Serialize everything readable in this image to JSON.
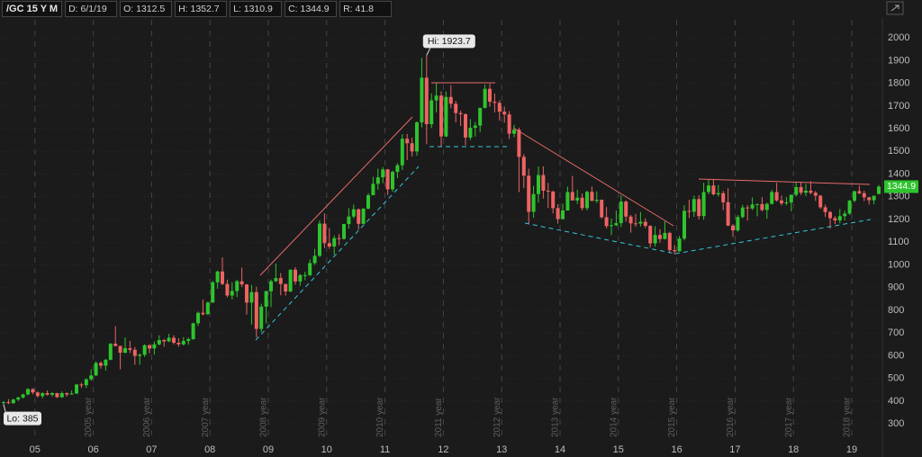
{
  "chart_data": {
    "type": "candlestick",
    "title": "/GC 15 Y M",
    "header_fields": [
      "D: 6/1/19",
      "O: 1312.5",
      "H: 1352.7",
      "L: 1310.9",
      "C: 1344.9",
      "R: 41.8"
    ],
    "hi_label": "Hi: 1923.7",
    "lo_label": "Lo: 385",
    "year_markers": [
      "2005 year",
      "2006 year",
      "2007 year",
      "2008 year",
      "2009 year",
      "2010 year",
      "2011 year",
      "2012 year",
      "2013 year",
      "2014 year",
      "2015 year",
      "2016 year",
      "2017 year",
      "2018 year"
    ],
    "up_color": "#2ec42e",
    "down_color": "#ee6363",
    "ylim": [
      225,
      2080
    ],
    "yticks": [
      300,
      400,
      500,
      600,
      700,
      800,
      900,
      1000,
      1100,
      1200,
      1300,
      1400,
      1500,
      1600,
      1700,
      1800,
      1900,
      2000
    ],
    "grid": true,
    "categories": [
      null,
      null,
      null,
      null,
      null,
      null,
      null,
      "05",
      null,
      null,
      null,
      null,
      null,
      null,
      null,
      null,
      null,
      null,
      null,
      "06",
      null,
      null,
      null,
      null,
      null,
      null,
      null,
      null,
      null,
      null,
      null,
      "07",
      null,
      null,
      null,
      null,
      null,
      null,
      null,
      null,
      null,
      null,
      null,
      "08",
      null,
      null,
      null,
      null,
      null,
      null,
      null,
      null,
      null,
      null,
      null,
      "09",
      null,
      null,
      null,
      null,
      null,
      null,
      null,
      null,
      null,
      null,
      null,
      "10",
      null,
      null,
      null,
      null,
      null,
      null,
      null,
      null,
      null,
      null,
      null,
      "11",
      null,
      null,
      null,
      null,
      null,
      null,
      null,
      null,
      null,
      null,
      null,
      "12",
      null,
      null,
      null,
      null,
      null,
      null,
      null,
      null,
      null,
      null,
      null,
      "13",
      null,
      null,
      null,
      null,
      null,
      null,
      null,
      null,
      null,
      null,
      null,
      "14",
      null,
      null,
      null,
      null,
      null,
      null,
      null,
      null,
      null,
      null,
      null,
      "15",
      null,
      null,
      null,
      null,
      null,
      null,
      null,
      null,
      null,
      null,
      null,
      "16",
      null,
      null,
      null,
      null,
      null,
      null,
      null,
      null,
      null,
      null,
      null,
      "17",
      null,
      null,
      null,
      null,
      null,
      null,
      null,
      null,
      null,
      null,
      null,
      "18",
      null,
      null,
      null,
      null,
      null,
      null,
      null,
      null,
      null,
      null,
      null,
      "19",
      null,
      null,
      null,
      null,
      null
    ],
    "candles": [
      [
        393,
        400,
        385,
        395
      ],
      [
        395,
        409,
        387,
        391
      ],
      [
        391,
        410,
        388,
        407
      ],
      [
        407,
        419,
        400,
        416
      ],
      [
        416,
        433,
        411,
        429
      ],
      [
        429,
        457,
        426,
        453
      ],
      [
        453,
        456,
        430,
        438
      ],
      [
        438,
        443,
        416,
        422
      ],
      [
        422,
        439,
        412,
        435
      ],
      [
        435,
        447,
        424,
        428
      ],
      [
        428,
        439,
        420,
        435
      ],
      [
        435,
        437,
        414,
        417
      ],
      [
        417,
        442,
        414,
        435
      ],
      [
        435,
        438,
        419,
        429
      ],
      [
        429,
        447,
        428,
        433
      ],
      [
        433,
        475,
        432,
        473
      ],
      [
        473,
        481,
        458,
        470
      ],
      [
        470,
        500,
        458,
        496
      ],
      [
        496,
        540,
        490,
        513
      ],
      [
        513,
        575,
        510,
        568
      ],
      [
        568,
        575,
        543,
        556
      ],
      [
        556,
        586,
        535,
        582
      ],
      [
        582,
        655,
        580,
        653
      ],
      [
        653,
        730,
        640,
        643
      ],
      [
        643,
        644,
        540,
        613
      ],
      [
        613,
        680,
        610,
        633
      ],
      [
        633,
        665,
        612,
        626
      ],
      [
        626,
        638,
        560,
        599
      ],
      [
        599,
        610,
        560,
        604
      ],
      [
        604,
        650,
        595,
        646
      ],
      [
        646,
        650,
        610,
        632
      ],
      [
        632,
        663,
        605,
        650
      ],
      [
        650,
        690,
        645,
        669
      ],
      [
        669,
        674,
        640,
        663
      ],
      [
        663,
        696,
        660,
        679
      ],
      [
        679,
        690,
        650,
        657
      ],
      [
        657,
        677,
        640,
        650
      ],
      [
        650,
        682,
        645,
        665
      ],
      [
        665,
        680,
        648,
        673
      ],
      [
        673,
        745,
        670,
        743
      ],
      [
        743,
        795,
        731,
        789
      ],
      [
        789,
        848,
        777,
        783
      ],
      [
        783,
        838,
        779,
        834
      ],
      [
        834,
        930,
        833,
        923
      ],
      [
        923,
        975,
        895,
        971
      ],
      [
        971,
        1033,
        911,
        916
      ],
      [
        916,
        935,
        857,
        865
      ],
      [
        865,
        923,
        847,
        885
      ],
      [
        885,
        935,
        858,
        928
      ],
      [
        928,
        988,
        903,
        914
      ],
      [
        914,
        915,
        782,
        834
      ],
      [
        834,
        912,
        737,
        880
      ],
      [
        880,
        904,
        681,
        718
      ],
      [
        718,
        829,
        704,
        816
      ],
      [
        816,
        887,
        743,
        884
      ],
      [
        884,
        935,
        814,
        928
      ],
      [
        928,
        1006,
        925,
        942
      ],
      [
        942,
        964,
        866,
        916
      ],
      [
        916,
        917,
        865,
        883
      ],
      [
        883,
        980,
        880,
        979
      ],
      [
        979,
        990,
        913,
        927
      ],
      [
        927,
        960,
        908,
        955
      ],
      [
        955,
        970,
        933,
        955
      ],
      [
        955,
        1024,
        950,
        1008
      ],
      [
        1008,
        1070,
        1000,
        1040
      ],
      [
        1040,
        1196,
        1035,
        1182
      ],
      [
        1182,
        1227,
        1075,
        1096
      ],
      [
        1096,
        1163,
        1071,
        1081
      ],
      [
        1081,
        1130,
        1044,
        1118
      ],
      [
        1118,
        1136,
        1087,
        1115
      ],
      [
        1115,
        1181,
        1111,
        1180
      ],
      [
        1180,
        1250,
        1160,
        1213
      ],
      [
        1213,
        1266,
        1205,
        1245
      ],
      [
        1245,
        1248,
        1155,
        1181
      ],
      [
        1181,
        1250,
        1180,
        1248
      ],
      [
        1248,
        1316,
        1245,
        1307
      ],
      [
        1307,
        1388,
        1307,
        1357
      ],
      [
        1357,
        1424,
        1331,
        1386
      ],
      [
        1386,
        1431,
        1360,
        1421
      ],
      [
        1421,
        1423,
        1308,
        1333
      ],
      [
        1333,
        1416,
        1323,
        1410
      ],
      [
        1410,
        1448,
        1382,
        1439
      ],
      [
        1439,
        1576,
        1418,
        1556
      ],
      [
        1556,
        1577,
        1462,
        1536
      ],
      [
        1536,
        1561,
        1478,
        1500
      ],
      [
        1500,
        1632,
        1481,
        1628
      ],
      [
        1628,
        1912,
        1606,
        1825
      ],
      [
        1825,
        1923.7,
        1532,
        1620
      ],
      [
        1620,
        1755,
        1603,
        1725
      ],
      [
        1725,
        1805,
        1672,
        1746
      ],
      [
        1746,
        1765,
        1523,
        1566
      ],
      [
        1566,
        1764,
        1563,
        1740
      ],
      [
        1740,
        1792,
        1690,
        1710
      ],
      [
        1710,
        1723,
        1628,
        1669
      ],
      [
        1669,
        1680,
        1612,
        1664
      ],
      [
        1664,
        1668,
        1527,
        1561
      ],
      [
        1561,
        1642,
        1550,
        1604
      ],
      [
        1604,
        1630,
        1565,
        1614
      ],
      [
        1614,
        1692,
        1585,
        1692
      ],
      [
        1692,
        1795,
        1689,
        1776
      ],
      [
        1776,
        1798,
        1697,
        1719
      ],
      [
        1719,
        1755,
        1672,
        1714
      ],
      [
        1714,
        1725,
        1636,
        1675
      ],
      [
        1675,
        1697,
        1627,
        1663
      ],
      [
        1663,
        1678,
        1555,
        1578
      ],
      [
        1578,
        1617,
        1562,
        1596
      ],
      [
        1596,
        1605,
        1321,
        1476
      ],
      [
        1476,
        1488,
        1338,
        1393
      ],
      [
        1393,
        1424,
        1180,
        1234
      ],
      [
        1234,
        1348,
        1208,
        1312
      ],
      [
        1312,
        1434,
        1275,
        1396
      ],
      [
        1396,
        1434,
        1292,
        1327
      ],
      [
        1327,
        1362,
        1251,
        1323
      ],
      [
        1323,
        1327,
        1227,
        1250
      ],
      [
        1250,
        1267,
        1182,
        1202
      ],
      [
        1202,
        1270,
        1200,
        1240
      ],
      [
        1240,
        1345,
        1239,
        1321
      ],
      [
        1321,
        1392,
        1284,
        1284
      ],
      [
        1284,
        1331,
        1268,
        1296
      ],
      [
        1296,
        1315,
        1240,
        1250
      ],
      [
        1250,
        1327,
        1240,
        1322
      ],
      [
        1322,
        1345,
        1281,
        1282
      ],
      [
        1282,
        1324,
        1273,
        1287
      ],
      [
        1287,
        1288,
        1205,
        1210
      ],
      [
        1210,
        1255,
        1161,
        1171
      ],
      [
        1171,
        1205,
        1131,
        1175
      ],
      [
        1175,
        1240,
        1170,
        1184
      ],
      [
        1184,
        1307,
        1167,
        1279
      ],
      [
        1279,
        1284,
        1191,
        1213
      ],
      [
        1213,
        1220,
        1142,
        1183
      ],
      [
        1183,
        1225,
        1168,
        1182
      ],
      [
        1182,
        1233,
        1169,
        1190
      ],
      [
        1190,
        1205,
        1162,
        1172
      ],
      [
        1172,
        1175,
        1077,
        1095
      ],
      [
        1095,
        1170,
        1080,
        1132
      ],
      [
        1132,
        1157,
        1098,
        1114
      ],
      [
        1114,
        1192,
        1112,
        1141
      ],
      [
        1141,
        1146,
        1052,
        1065
      ],
      [
        1065,
        1088,
        1046,
        1060
      ],
      [
        1060,
        1128,
        1058,
        1116
      ],
      [
        1116,
        1263,
        1108,
        1238
      ],
      [
        1238,
        1287,
        1207,
        1234
      ],
      [
        1234,
        1306,
        1212,
        1290
      ],
      [
        1290,
        1307,
        1200,
        1215
      ],
      [
        1215,
        1362,
        1199,
        1321
      ],
      [
        1321,
        1377,
        1311,
        1350
      ],
      [
        1350,
        1375,
        1306,
        1311
      ],
      [
        1311,
        1352,
        1301,
        1316
      ],
      [
        1316,
        1326,
        1241,
        1276
      ],
      [
        1276,
        1338,
        1171,
        1173
      ],
      [
        1173,
        1180,
        1123,
        1152
      ],
      [
        1152,
        1220,
        1146,
        1211
      ],
      [
        1211,
        1265,
        1205,
        1253
      ],
      [
        1253,
        1264,
        1195,
        1249
      ],
      [
        1249,
        1297,
        1242,
        1266
      ],
      [
        1266,
        1270,
        1214,
        1268
      ],
      [
        1268,
        1298,
        1236,
        1242
      ],
      [
        1242,
        1274,
        1204,
        1269
      ],
      [
        1269,
        1331,
        1266,
        1321
      ],
      [
        1321,
        1362,
        1279,
        1284
      ],
      [
        1284,
        1306,
        1262,
        1271
      ],
      [
        1271,
        1299,
        1263,
        1275
      ],
      [
        1275,
        1310,
        1236,
        1309
      ],
      [
        1309,
        1366,
        1302,
        1343
      ],
      [
        1343,
        1366,
        1308,
        1318
      ],
      [
        1318,
        1357,
        1303,
        1327
      ],
      [
        1327,
        1369,
        1311,
        1318
      ],
      [
        1318,
        1326,
        1282,
        1305
      ],
      [
        1305,
        1309,
        1247,
        1254
      ],
      [
        1254,
        1266,
        1211,
        1233
      ],
      [
        1233,
        1237,
        1160,
        1206
      ],
      [
        1206,
        1215,
        1180,
        1196
      ],
      [
        1196,
        1246,
        1183,
        1215
      ],
      [
        1215,
        1239,
        1196,
        1226
      ],
      [
        1226,
        1287,
        1221,
        1283
      ],
      [
        1283,
        1326,
        1276,
        1325
      ],
      [
        1325,
        1349,
        1311,
        1316
      ],
      [
        1316,
        1327,
        1281,
        1298
      ],
      [
        1298,
        1300,
        1266,
        1285
      ],
      [
        1285,
        1305,
        1267,
        1305
      ],
      [
        1312.5,
        1352.7,
        1310.9,
        1344.9
      ]
    ]
  }
}
